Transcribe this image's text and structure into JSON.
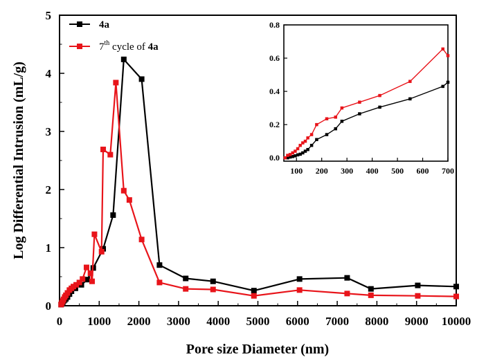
{
  "chart_data": [
    {
      "type": "line",
      "xlabel": "Pore size Diameter (nm)",
      "ylabel": "Log Differential Intrusion (mL/g)",
      "xlim": [
        0,
        10000
      ],
      "ylim": [
        0,
        5
      ],
      "x_ticks": [
        "0",
        "1000",
        "2000",
        "3000",
        "4000",
        "5000",
        "6000",
        "7000",
        "8000",
        "9000",
        "10000"
      ],
      "y_ticks": [
        "0",
        "1",
        "2",
        "3",
        "4",
        "5"
      ],
      "legend_placement": "top-left",
      "series": [
        {
          "name": "4a",
          "color": "#000000",
          "marker": "square",
          "x": [
            40,
            60,
            80,
            100,
            130,
            160,
            200,
            250,
            300,
            400,
            550,
            700,
            850,
            1100,
            1350,
            1620,
            2070,
            2520,
            3180,
            3870,
            4900,
            6050,
            7250,
            7850,
            9030,
            10000
          ],
          "y": [
            0.02,
            0.04,
            0.06,
            0.08,
            0.1,
            0.12,
            0.15,
            0.2,
            0.25,
            0.3,
            0.36,
            0.45,
            0.65,
            0.98,
            1.56,
            4.24,
            3.9,
            0.7,
            0.47,
            0.42,
            0.26,
            0.46,
            0.48,
            0.29,
            0.35,
            0.33
          ]
        },
        {
          "name": "7th cycle of 4a",
          "legend_label": {
            "prefix": "7",
            "sup": "th",
            "mid": " cycle of ",
            "bold": "4a"
          },
          "color": "#e8141a",
          "marker": "square",
          "x": [
            40,
            60,
            80,
            100,
            130,
            160,
            200,
            250,
            300,
            350,
            420,
            500,
            580,
            680,
            780,
            820,
            880,
            1060,
            1100,
            1280,
            1420,
            1620,
            1760,
            2070,
            2520,
            3180,
            3870,
            4900,
            6050,
            7250,
            7850,
            9030,
            10000
          ],
          "y": [
            0.02,
            0.05,
            0.08,
            0.11,
            0.15,
            0.18,
            0.22,
            0.27,
            0.3,
            0.33,
            0.36,
            0.4,
            0.46,
            0.66,
            0.56,
            0.42,
            1.23,
            0.93,
            2.69,
            2.6,
            3.84,
            1.98,
            1.82,
            1.14,
            0.4,
            0.29,
            0.28,
            0.17,
            0.27,
            0.21,
            0.18,
            0.17,
            0.16
          ]
        }
      ]
    },
    {
      "type": "line",
      "role": "inset",
      "xlim": [
        50,
        700
      ],
      "ylim": [
        -0.02,
        0.8
      ],
      "x_ticks": [
        "100",
        "200",
        "300",
        "400",
        "500",
        "600",
        "700"
      ],
      "y_ticks": [
        "0.0",
        "0.2",
        "0.4",
        "0.6",
        "0.8"
      ],
      "series": [
        {
          "name": "4a",
          "color": "#000000",
          "x": [
            55,
            65,
            75,
            85,
            95,
            105,
            115,
            125,
            135,
            145,
            160,
            180,
            220,
            255,
            280,
            350,
            430,
            550,
            680,
            700
          ],
          "y": [
            0.0,
            0.0,
            0.005,
            0.008,
            0.012,
            0.018,
            0.022,
            0.03,
            0.04,
            0.05,
            0.075,
            0.11,
            0.14,
            0.175,
            0.22,
            0.265,
            0.305,
            0.355,
            0.43,
            0.455
          ]
        },
        {
          "name": "7th cycle of 4a",
          "color": "#e8141a",
          "x": [
            55,
            65,
            75,
            85,
            95,
            105,
            115,
            125,
            135,
            145,
            160,
            180,
            220,
            255,
            280,
            350,
            430,
            550,
            680,
            700
          ],
          "y": [
            0.0,
            0.015,
            0.02,
            0.03,
            0.04,
            0.055,
            0.075,
            0.09,
            0.1,
            0.12,
            0.14,
            0.2,
            0.235,
            0.245,
            0.3,
            0.335,
            0.375,
            0.46,
            0.655,
            0.615
          ]
        }
      ]
    }
  ]
}
